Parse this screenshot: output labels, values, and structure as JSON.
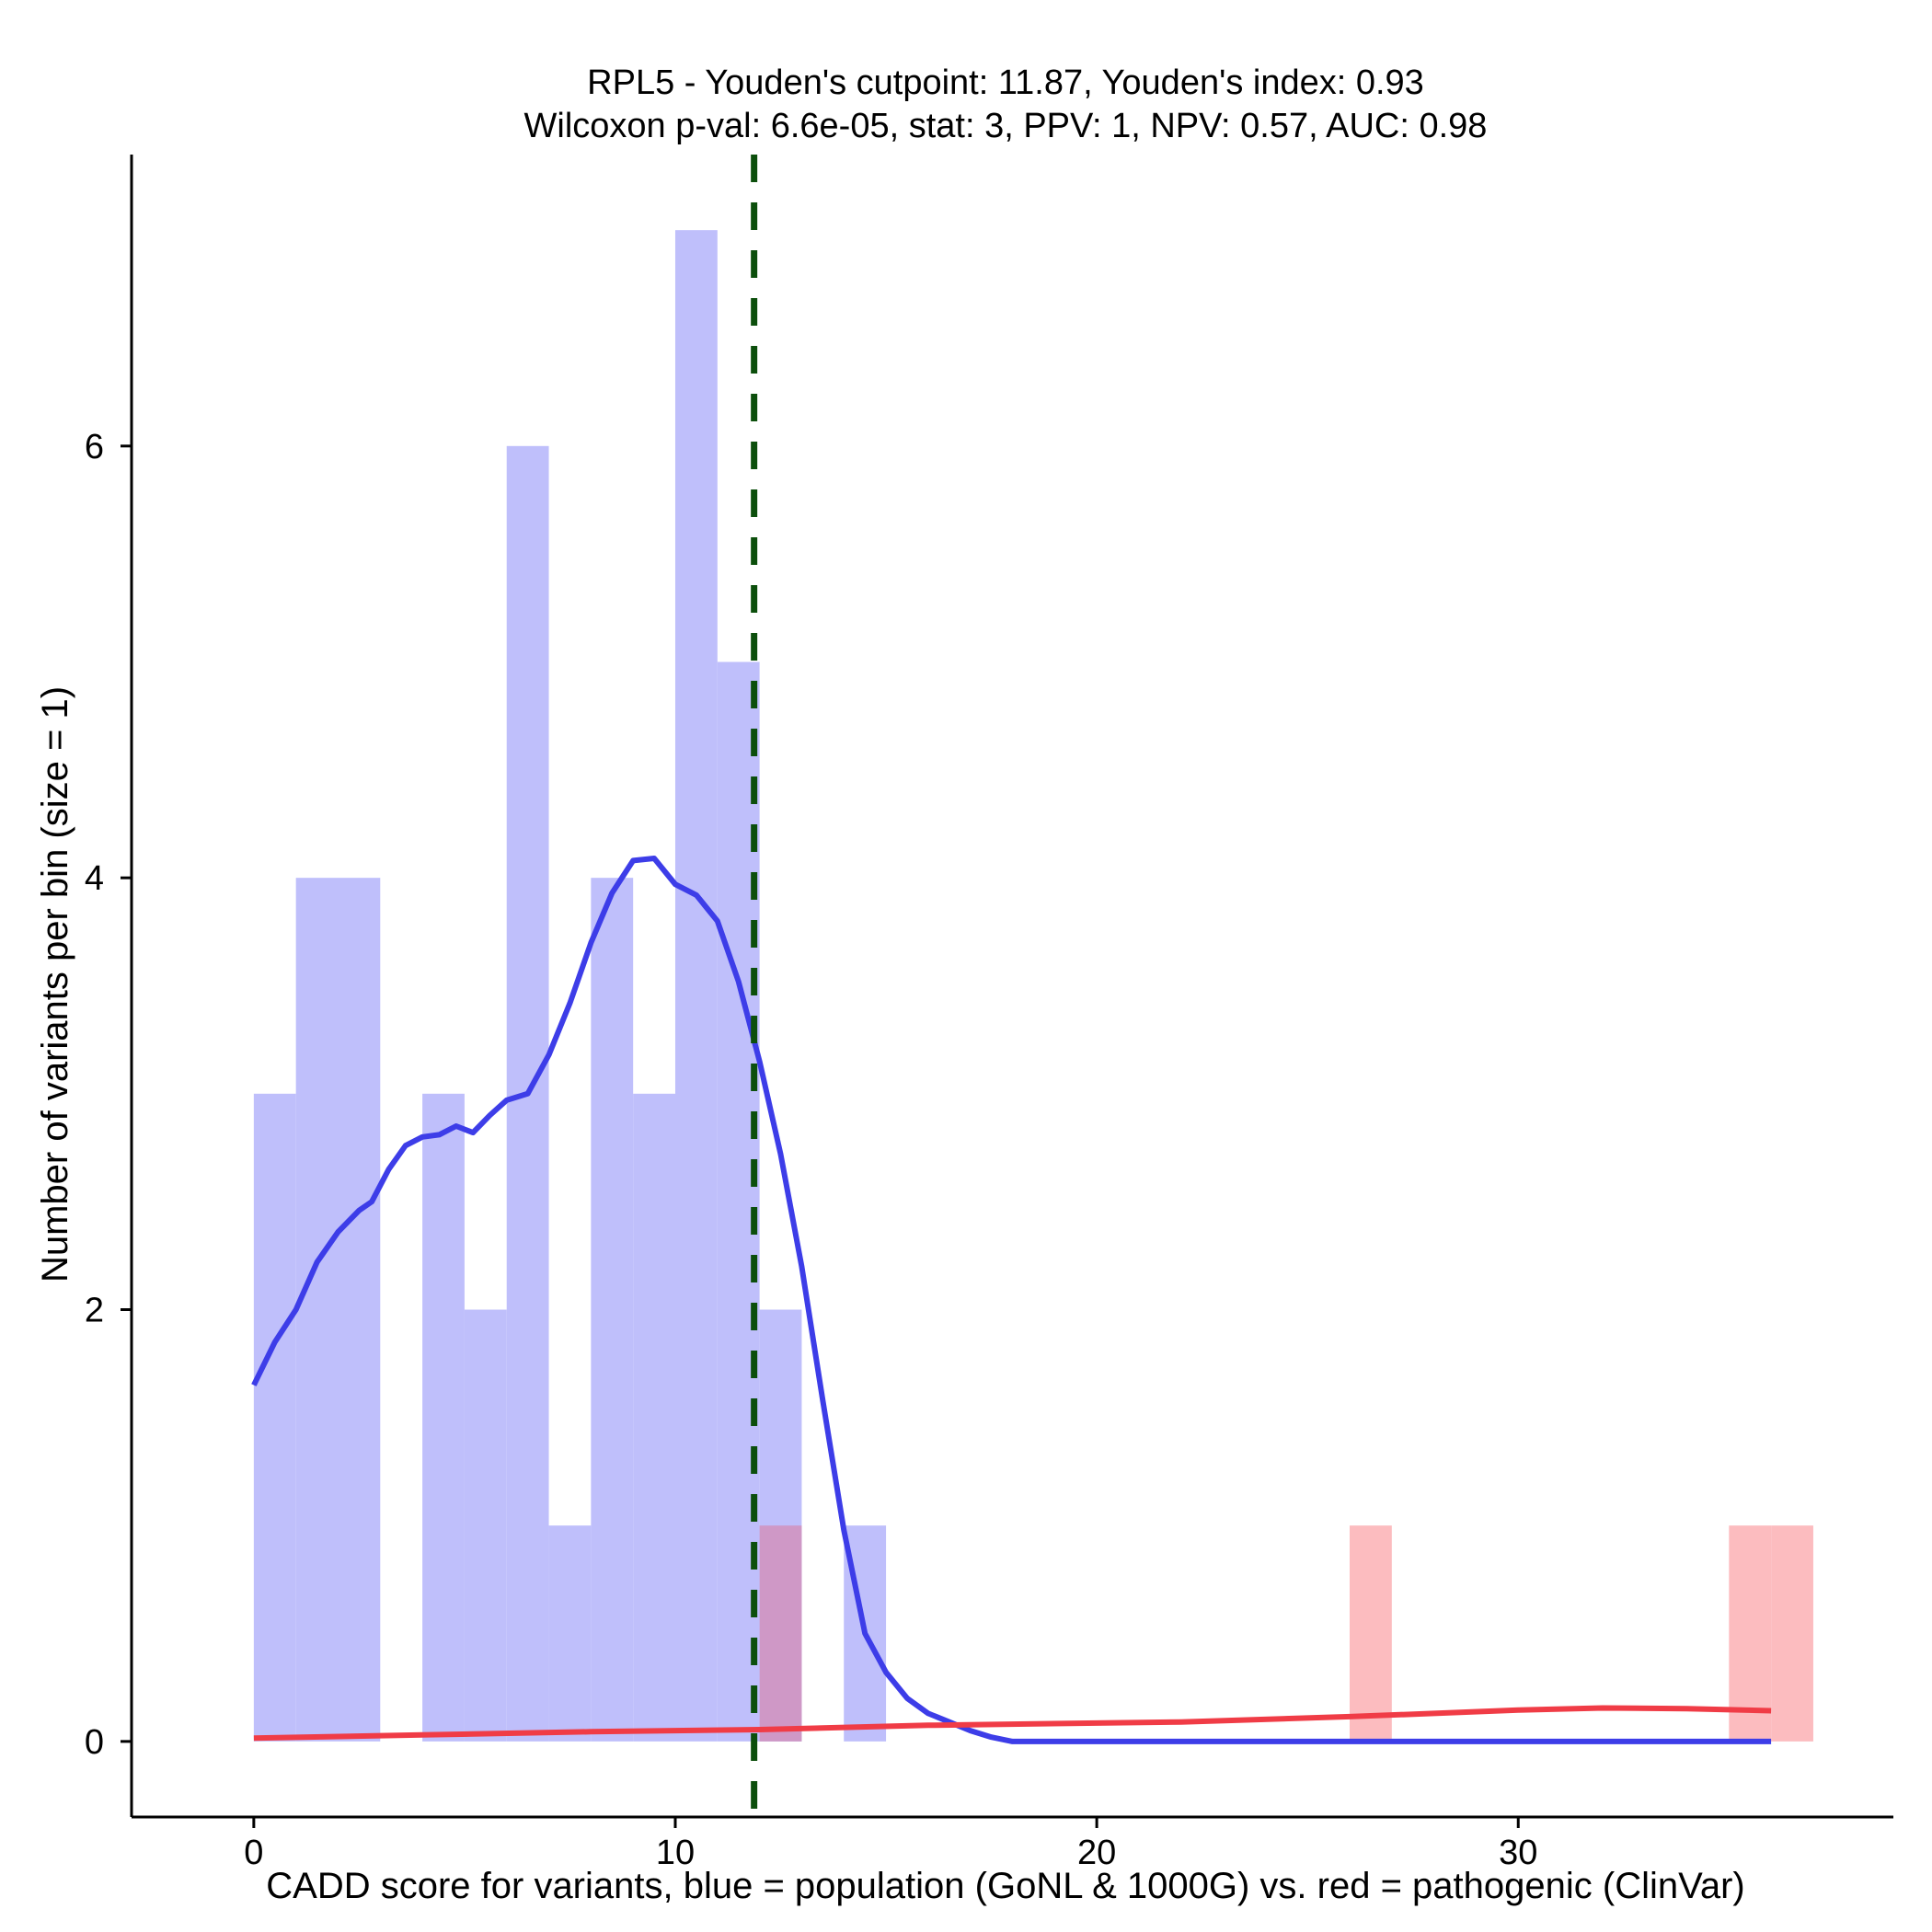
{
  "chart_data": {
    "type": "histogram",
    "title_line1": "RPL5 - Youden's cutpoint: 11.87, Youden's index: 0.93",
    "title_line2": "Wilcoxon p-val: 6.6e-05, stat: 3, PPV: 1, NPV: 0.57, AUC: 0.98",
    "xlabel": "CADD score for variants, blue = population (GoNL & 1000G) vs. red = pathogenic (ClinVar)",
    "ylabel": "Number of variants per bin (size = 1)",
    "xlim": [
      -2.9,
      38.9
    ],
    "ylim": [
      -0.35,
      7.35
    ],
    "xticks": [
      0,
      10,
      20,
      30
    ],
    "yticks": [
      0,
      2,
      4,
      6
    ],
    "bin_size": 1,
    "cutpoint": 11.87,
    "colors": {
      "population_bar": "#bfbffb",
      "pathogenic_bar": "#fcbcbf",
      "overlap_bar": "#cf98c6",
      "population_line": "#3d3de8",
      "pathogenic_line": "#f03c46",
      "cutpoint_line": "#0c4f0c",
      "axis": "#000000"
    },
    "series": [
      {
        "name": "population",
        "bins": [
          {
            "start": 0,
            "count": 3
          },
          {
            "start": 1,
            "count": 4
          },
          {
            "start": 2,
            "count": 4
          },
          {
            "start": 4,
            "count": 3
          },
          {
            "start": 5,
            "count": 2
          },
          {
            "start": 6,
            "count": 6
          },
          {
            "start": 7,
            "count": 1
          },
          {
            "start": 8,
            "count": 4
          },
          {
            "start": 9,
            "count": 3
          },
          {
            "start": 10,
            "count": 7
          },
          {
            "start": 11,
            "count": 5
          },
          {
            "start": 12,
            "count": 2
          },
          {
            "start": 14,
            "count": 1
          }
        ],
        "density_curve": [
          [
            0,
            1.65
          ],
          [
            0.5,
            1.85
          ],
          [
            1,
            2.0
          ],
          [
            1.5,
            2.22
          ],
          [
            2,
            2.36
          ],
          [
            2.5,
            2.46
          ],
          [
            2.8,
            2.5
          ],
          [
            3.2,
            2.65
          ],
          [
            3.6,
            2.76
          ],
          [
            4,
            2.8
          ],
          [
            4.4,
            2.81
          ],
          [
            4.8,
            2.85
          ],
          [
            5.2,
            2.82
          ],
          [
            5.6,
            2.9
          ],
          [
            6,
            2.97
          ],
          [
            6.5,
            3.0
          ],
          [
            7,
            3.18
          ],
          [
            7.5,
            3.42
          ],
          [
            8,
            3.7
          ],
          [
            8.5,
            3.93
          ],
          [
            9,
            4.08
          ],
          [
            9.5,
            4.09
          ],
          [
            10,
            3.97
          ],
          [
            10.5,
            3.92
          ],
          [
            11,
            3.8
          ],
          [
            11.5,
            3.52
          ],
          [
            12,
            3.15
          ],
          [
            12.5,
            2.72
          ],
          [
            13,
            2.2
          ],
          [
            13.5,
            1.58
          ],
          [
            14,
            0.98
          ],
          [
            14.5,
            0.5
          ],
          [
            15,
            0.32
          ],
          [
            15.5,
            0.2
          ],
          [
            16,
            0.13
          ],
          [
            16.5,
            0.09
          ],
          [
            17,
            0.05
          ],
          [
            17.5,
            0.02
          ],
          [
            18,
            0.0
          ],
          [
            20,
            0.0
          ],
          [
            25,
            0.0
          ],
          [
            30,
            0.0
          ],
          [
            36,
            0.0
          ]
        ]
      },
      {
        "name": "pathogenic",
        "bins": [
          {
            "start": 12,
            "count": 1
          },
          {
            "start": 26,
            "count": 1
          },
          {
            "start": 35,
            "count": 1
          },
          {
            "start": 36,
            "count": 1
          }
        ],
        "density_curve": [
          [
            0,
            0.015
          ],
          [
            4,
            0.03
          ],
          [
            8,
            0.045
          ],
          [
            12,
            0.055
          ],
          [
            16,
            0.075
          ],
          [
            20,
            0.085
          ],
          [
            22,
            0.09
          ],
          [
            26,
            0.115
          ],
          [
            30,
            0.145
          ],
          [
            32,
            0.155
          ],
          [
            34,
            0.152
          ],
          [
            36,
            0.142
          ]
        ]
      }
    ]
  }
}
